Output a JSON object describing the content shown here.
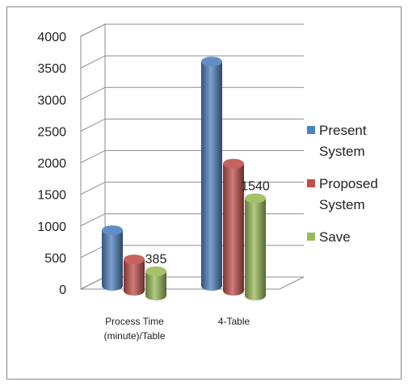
{
  "chart_data": {
    "type": "bar",
    "title": "",
    "xlabel": "",
    "ylabel": "",
    "ylim": [
      0,
      4000
    ],
    "yticks": [
      0,
      500,
      1000,
      1500,
      2000,
      2500,
      3000,
      3500,
      4000
    ],
    "categories": [
      {
        "lines": [
          "Process Time",
          "(minute)/Table"
        ]
      },
      {
        "lines": [
          "4-Table"
        ]
      }
    ],
    "series": [
      {
        "name": "Present System",
        "name_lines": [
          "Present",
          "System"
        ],
        "color": "#4f81bd",
        "values": [
          880,
          3550
        ]
      },
      {
        "name": "Proposed System",
        "name_lines": [
          "Proposed",
          "System"
        ],
        "color": "#c0504d",
        "values": [
          495,
          2010
        ]
      },
      {
        "name": "Save",
        "name_lines": [
          "Save"
        ],
        "color": "#9bbb59",
        "values": [
          385,
          1540
        ]
      }
    ],
    "data_labels": [
      {
        "series": 2,
        "category": 0,
        "text": "385"
      },
      {
        "series": 2,
        "category": 1,
        "text": "1540"
      }
    ],
    "legend": "right",
    "grid": true,
    "style": "3d-cylinder"
  }
}
